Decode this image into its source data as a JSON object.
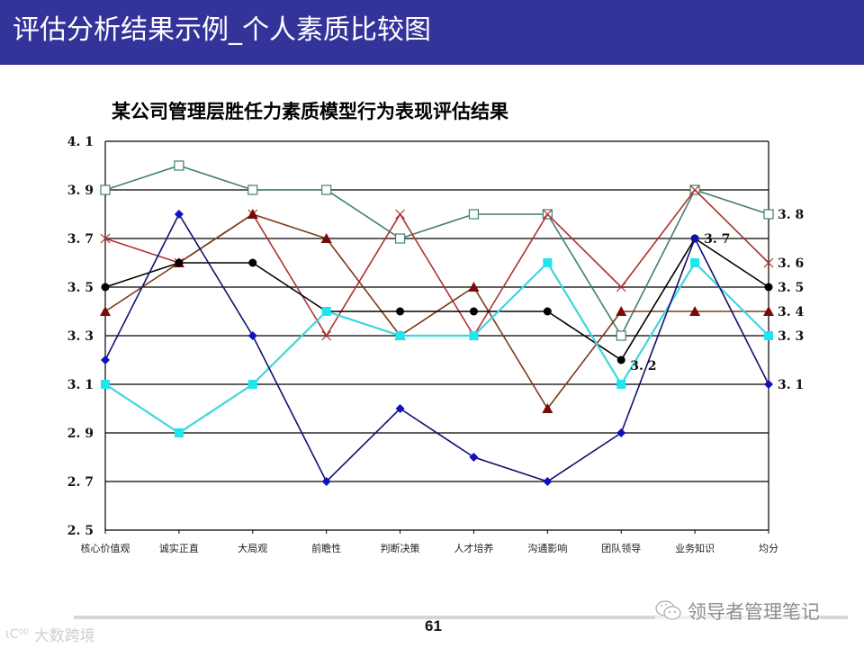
{
  "header": {
    "title": "评估分析结果示例_个人素质比较图",
    "background": "#343399"
  },
  "chart_data": {
    "type": "line",
    "title": "某公司管理层胜任力素质模型行为表现评估结果",
    "xlabel": "",
    "ylabel": "",
    "ylim": [
      2.5,
      4.1
    ],
    "yticks": [
      "4.1",
      "3.9",
      "3.7",
      "3.5",
      "3.3",
      "3.1",
      "2.9",
      "2.7",
      "2.5"
    ],
    "ytick_values": [
      4.1,
      3.9,
      3.7,
      3.5,
      3.3,
      3.1,
      2.9,
      2.7,
      2.5
    ],
    "grid": true,
    "legend": "none",
    "categories": [
      "核心价值观",
      "诚实正直",
      "大局观",
      "前瞻性",
      "判断决策",
      "人才培养",
      "沟通影响",
      "团队领导",
      "业务知识",
      "均分"
    ],
    "series": [
      {
        "name": "Series A (teal hollow square)",
        "color": "#3f8070",
        "marker": "hollow-square",
        "values": [
          3.9,
          4.0,
          3.9,
          3.9,
          3.7,
          3.8,
          3.8,
          3.3,
          3.9,
          3.8
        ]
      },
      {
        "name": "Series B (red x)",
        "color": "#b03030",
        "marker": "x",
        "values": [
          3.7,
          3.6,
          3.8,
          3.3,
          3.8,
          3.3,
          3.8,
          3.5,
          3.9,
          3.6
        ]
      },
      {
        "name": "Series C (brown triangle)",
        "color": "#7a3a1a",
        "marker": "triangle",
        "markerColor": "#7a0a0a",
        "values": [
          3.4,
          3.6,
          3.8,
          3.7,
          3.3,
          3.5,
          3.0,
          3.4,
          3.4,
          3.4
        ]
      },
      {
        "name": "Series D (black circle)",
        "color": "#000000",
        "marker": "circle",
        "values": [
          3.5,
          3.6,
          3.6,
          3.4,
          3.4,
          3.4,
          3.4,
          3.2,
          3.7,
          3.5
        ]
      },
      {
        "name": "Series E (cyan filled square)",
        "color": "#3fd6dc",
        "marker": "square",
        "markerColor": "#1ee6ee",
        "values": [
          3.1,
          2.9,
          3.1,
          3.4,
          3.3,
          3.3,
          3.6,
          3.1,
          3.6,
          3.3
        ]
      },
      {
        "name": "Series F (navy diamond)",
        "color": "#101070",
        "marker": "diamond",
        "markerColor": "#1010c0",
        "values": [
          3.2,
          3.8,
          3.3,
          2.7,
          3.0,
          2.8,
          2.7,
          2.9,
          3.7,
          3.1
        ]
      }
    ],
    "annotations": [
      {
        "text": "3.8",
        "category": "均分",
        "value": 3.8
      },
      {
        "text": "3.7",
        "category": "业务知识",
        "value": 3.7
      },
      {
        "text": "3.6",
        "category": "均分",
        "value": 3.6
      },
      {
        "text": "3.5",
        "category": "均分",
        "value": 3.5
      },
      {
        "text": "3.4",
        "category": "均分",
        "value": 3.4
      },
      {
        "text": "3.3",
        "category": "均分",
        "value": 3.3
      },
      {
        "text": "3.2",
        "category": "团队领导",
        "value": 3.2
      },
      {
        "text": "3.1",
        "category": "均分",
        "value": 3.1
      }
    ]
  },
  "footer": {
    "page_number": "61",
    "watermark_left": "大数跨境",
    "watermark_left_logo": "ιC⁰⁰",
    "watermark_right": "领导者管理笔记"
  }
}
